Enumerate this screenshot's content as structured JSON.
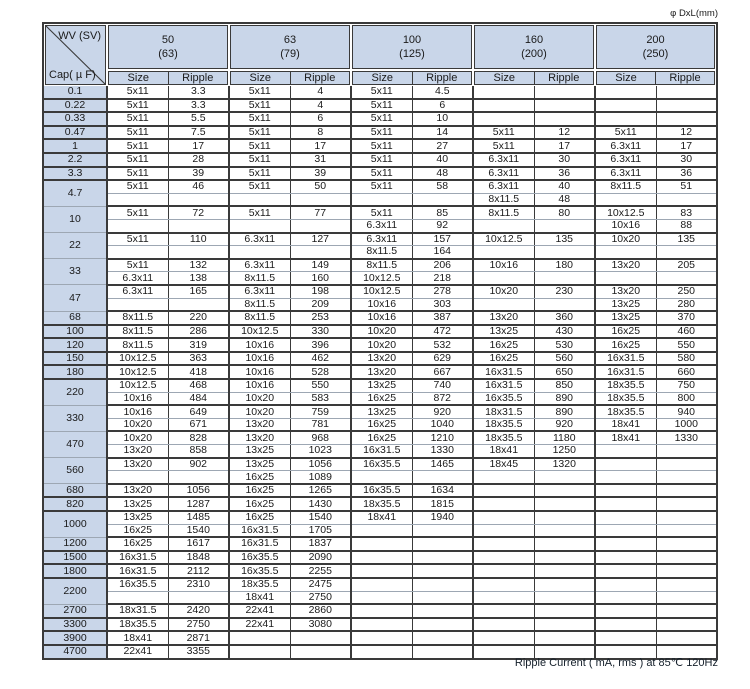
{
  "page": {
    "top_right_label": "φ DxL(mm)",
    "bottom_note": "Ripple Current ( mA, rms ) at 85℃ 120Hz"
  },
  "colors": {
    "header_fill": "#c9d6e9",
    "grid_line": "#3a3a3a"
  },
  "table": {
    "corner": {
      "top": "WV (SV)",
      "bottom": "Cap( µ F)"
    },
    "voltage_columns": [
      {
        "wv": "50",
        "sv": "(63)"
      },
      {
        "wv": "63",
        "sv": "(79)"
      },
      {
        "wv": "100",
        "sv": "(125)"
      },
      {
        "wv": "160",
        "sv": "(200)"
      },
      {
        "wv": "200",
        "sv": "(250)"
      }
    ],
    "subheaders": [
      "Size",
      "Ripple"
    ],
    "rows": [
      {
        "cap": "0.1",
        "sub": [
          [
            [
              "5x11",
              "3.3"
            ],
            [
              "5x11",
              "4"
            ],
            [
              "5x11",
              "4.5"
            ],
            [
              "",
              ""
            ],
            [
              "",
              ""
            ]
          ]
        ]
      },
      {
        "cap": "0.22",
        "sub": [
          [
            [
              "5x11",
              "3.3"
            ],
            [
              "5x11",
              "4"
            ],
            [
              "5x11",
              "6"
            ],
            [
              "",
              ""
            ],
            [
              "",
              ""
            ]
          ]
        ]
      },
      {
        "cap": "0.33",
        "sub": [
          [
            [
              "5x11",
              "5.5"
            ],
            [
              "5x11",
              "6"
            ],
            [
              "5x11",
              "10"
            ],
            [
              "",
              ""
            ],
            [
              "",
              ""
            ]
          ]
        ]
      },
      {
        "cap": "0.47",
        "sub": [
          [
            [
              "5x11",
              "7.5"
            ],
            [
              "5x11",
              "8"
            ],
            [
              "5x11",
              "14"
            ],
            [
              "5x11",
              "12"
            ],
            [
              "5x11",
              "12"
            ]
          ]
        ]
      },
      {
        "cap": "1",
        "sub": [
          [
            [
              "5x11",
              "17"
            ],
            [
              "5x11",
              "17"
            ],
            [
              "5x11",
              "27"
            ],
            [
              "5x11",
              "17"
            ],
            [
              "6.3x11",
              "17"
            ]
          ]
        ]
      },
      {
        "cap": "2.2",
        "sub": [
          [
            [
              "5x11",
              "28"
            ],
            [
              "5x11",
              "31"
            ],
            [
              "5x11",
              "40"
            ],
            [
              "6.3x11",
              "30"
            ],
            [
              "6.3x11",
              "30"
            ]
          ]
        ]
      },
      {
        "cap": "3.3",
        "sub": [
          [
            [
              "5x11",
              "39"
            ],
            [
              "5x11",
              "39"
            ],
            [
              "5x11",
              "48"
            ],
            [
              "6.3x11",
              "36"
            ],
            [
              "6.3x11",
              "36"
            ]
          ]
        ]
      },
      {
        "cap": "4.7",
        "sub": [
          [
            [
              "5x11",
              "46"
            ],
            [
              "5x11",
              "50"
            ],
            [
              "5x11",
              "58"
            ],
            [
              "6.3x11",
              "40"
            ],
            [
              "8x11.5",
              "51"
            ]
          ],
          [
            [
              "",
              ""
            ],
            [
              "",
              ""
            ],
            [
              "",
              ""
            ],
            [
              "8x11.5",
              "48"
            ],
            [
              "",
              ""
            ]
          ]
        ]
      },
      {
        "cap": "10",
        "sub": [
          [
            [
              "5x11",
              "72"
            ],
            [
              "5x11",
              "77"
            ],
            [
              "5x11",
              "85"
            ],
            [
              "8x11.5",
              "80"
            ],
            [
              "10x12.5",
              "83"
            ]
          ],
          [
            [
              "",
              ""
            ],
            [
              "",
              ""
            ],
            [
              "6.3x11",
              "92"
            ],
            [
              "",
              ""
            ],
            [
              "10x16",
              "88"
            ]
          ]
        ]
      },
      {
        "cap": "22",
        "sub": [
          [
            [
              "5x11",
              "110"
            ],
            [
              "6.3x11",
              "127"
            ],
            [
              "6.3x11",
              "157"
            ],
            [
              "10x12.5",
              "135"
            ],
            [
              "10x20",
              "135"
            ]
          ],
          [
            [
              "",
              ""
            ],
            [
              "",
              ""
            ],
            [
              "8x11.5",
              "164"
            ],
            [
              "",
              ""
            ],
            [
              "",
              ""
            ]
          ]
        ]
      },
      {
        "cap": "33",
        "sub": [
          [
            [
              "5x11",
              "132"
            ],
            [
              "6.3x11",
              "149"
            ],
            [
              "8x11.5",
              "206"
            ],
            [
              "10x16",
              "180"
            ],
            [
              "13x20",
              "205"
            ]
          ],
          [
            [
              "6.3x11",
              "138"
            ],
            [
              "8x11.5",
              "160"
            ],
            [
              "10x12.5",
              "218"
            ],
            [
              "",
              ""
            ],
            [
              "",
              ""
            ]
          ]
        ]
      },
      {
        "cap": "47",
        "sub": [
          [
            [
              "6.3x11",
              "165"
            ],
            [
              "6.3x11",
              "198"
            ],
            [
              "10x12.5",
              "278"
            ],
            [
              "10x20",
              "230"
            ],
            [
              "13x20",
              "250"
            ]
          ],
          [
            [
              "",
              ""
            ],
            [
              "8x11.5",
              "209"
            ],
            [
              "10x16",
              "303"
            ],
            [
              "",
              ""
            ],
            [
              "13x25",
              "280"
            ]
          ]
        ]
      },
      {
        "cap": "68",
        "sub": [
          [
            [
              "8x11.5",
              "220"
            ],
            [
              "8x11.5",
              "253"
            ],
            [
              "10x16",
              "387"
            ],
            [
              "13x20",
              "360"
            ],
            [
              "13x25",
              "370"
            ]
          ]
        ]
      },
      {
        "cap": "100",
        "sub": [
          [
            [
              "8x11.5",
              "286"
            ],
            [
              "10x12.5",
              "330"
            ],
            [
              "10x20",
              "472"
            ],
            [
              "13x25",
              "430"
            ],
            [
              "16x25",
              "460"
            ]
          ]
        ]
      },
      {
        "cap": "120",
        "sub": [
          [
            [
              "8x11.5",
              "319"
            ],
            [
              "10x16",
              "396"
            ],
            [
              "10x20",
              "532"
            ],
            [
              "16x25",
              "530"
            ],
            [
              "16x25",
              "550"
            ]
          ]
        ]
      },
      {
        "cap": "150",
        "sub": [
          [
            [
              "10x12.5",
              "363"
            ],
            [
              "10x16",
              "462"
            ],
            [
              "13x20",
              "629"
            ],
            [
              "16x25",
              "560"
            ],
            [
              "16x31.5",
              "580"
            ]
          ]
        ]
      },
      {
        "cap": "180",
        "sub": [
          [
            [
              "10x12.5",
              "418"
            ],
            [
              "10x16",
              "528"
            ],
            [
              "13x20",
              "667"
            ],
            [
              "16x31.5",
              "650"
            ],
            [
              "16x31.5",
              "660"
            ]
          ]
        ]
      },
      {
        "cap": "220",
        "sub": [
          [
            [
              "10x12.5",
              "468"
            ],
            [
              "10x16",
              "550"
            ],
            [
              "13x25",
              "740"
            ],
            [
              "16x31.5",
              "850"
            ],
            [
              "18x35.5",
              "750"
            ]
          ],
          [
            [
              "10x16",
              "484"
            ],
            [
              "10x20",
              "583"
            ],
            [
              "16x25",
              "872"
            ],
            [
              "16x35.5",
              "890"
            ],
            [
              "18x35.5",
              "800"
            ]
          ]
        ]
      },
      {
        "cap": "330",
        "sub": [
          [
            [
              "10x16",
              "649"
            ],
            [
              "10x20",
              "759"
            ],
            [
              "13x25",
              "920"
            ],
            [
              "18x31.5",
              "890"
            ],
            [
              "18x35.5",
              "940"
            ]
          ],
          [
            [
              "10x20",
              "671"
            ],
            [
              "13x20",
              "781"
            ],
            [
              "16x25",
              "1040"
            ],
            [
              "18x35.5",
              "920"
            ],
            [
              "18x41",
              "1000"
            ]
          ]
        ]
      },
      {
        "cap": "470",
        "sub": [
          [
            [
              "10x20",
              "828"
            ],
            [
              "13x20",
              "968"
            ],
            [
              "16x25",
              "1210"
            ],
            [
              "18x35.5",
              "1180"
            ],
            [
              "18x41",
              "1330"
            ]
          ],
          [
            [
              "13x20",
              "858"
            ],
            [
              "13x25",
              "1023"
            ],
            [
              "16x31.5",
              "1330"
            ],
            [
              "18x41",
              "1250"
            ],
            [
              "",
              ""
            ]
          ]
        ]
      },
      {
        "cap": "560",
        "sub": [
          [
            [
              "13x20",
              "902"
            ],
            [
              "13x25",
              "1056"
            ],
            [
              "16x35.5",
              "1465"
            ],
            [
              "18x45",
              "1320"
            ],
            [
              "",
              ""
            ]
          ],
          [
            [
              "",
              ""
            ],
            [
              "16x25",
              "1089"
            ],
            [
              "",
              ""
            ],
            [
              "",
              ""
            ],
            [
              "",
              ""
            ]
          ]
        ]
      },
      {
        "cap": "680",
        "sub": [
          [
            [
              "13x20",
              "1056"
            ],
            [
              "16x25",
              "1265"
            ],
            [
              "16x35.5",
              "1634"
            ],
            [
              "",
              ""
            ],
            [
              "",
              ""
            ]
          ]
        ]
      },
      {
        "cap": "820",
        "sub": [
          [
            [
              "13x25",
              "1287"
            ],
            [
              "16x25",
              "1430"
            ],
            [
              "18x35.5",
              "1815"
            ],
            [
              "",
              ""
            ],
            [
              "",
              ""
            ]
          ]
        ]
      },
      {
        "cap": "1000",
        "sub": [
          [
            [
              "13x25",
              "1485"
            ],
            [
              "16x25",
              "1540"
            ],
            [
              "18x41",
              "1940"
            ],
            [
              "",
              ""
            ],
            [
              "",
              ""
            ]
          ],
          [
            [
              "16x25",
              "1540"
            ],
            [
              "16x31.5",
              "1705"
            ],
            [
              "",
              ""
            ],
            [
              "",
              ""
            ],
            [
              "",
              ""
            ]
          ]
        ]
      },
      {
        "cap": "1200",
        "sub": [
          [
            [
              "16x25",
              "1617"
            ],
            [
              "16x31.5",
              "1837"
            ],
            [
              "",
              ""
            ],
            [
              "",
              ""
            ],
            [
              "",
              ""
            ]
          ]
        ]
      },
      {
        "cap": "1500",
        "sub": [
          [
            [
              "16x31.5",
              "1848"
            ],
            [
              "16x35.5",
              "2090"
            ],
            [
              "",
              ""
            ],
            [
              "",
              ""
            ],
            [
              "",
              ""
            ]
          ]
        ]
      },
      {
        "cap": "1800",
        "sub": [
          [
            [
              "16x31.5",
              "2112"
            ],
            [
              "16x35.5",
              "2255"
            ],
            [
              "",
              ""
            ],
            [
              "",
              ""
            ],
            [
              "",
              ""
            ]
          ]
        ]
      },
      {
        "cap": "2200",
        "sub": [
          [
            [
              "16x35.5",
              "2310"
            ],
            [
              "18x35.5",
              "2475"
            ],
            [
              "",
              ""
            ],
            [
              "",
              ""
            ],
            [
              "",
              ""
            ]
          ],
          [
            [
              "",
              ""
            ],
            [
              "18x41",
              "2750"
            ],
            [
              "",
              ""
            ],
            [
              "",
              ""
            ],
            [
              "",
              ""
            ]
          ]
        ]
      },
      {
        "cap": "2700",
        "sub": [
          [
            [
              "18x31.5",
              "2420"
            ],
            [
              "22x41",
              "2860"
            ],
            [
              "",
              ""
            ],
            [
              "",
              ""
            ],
            [
              "",
              ""
            ]
          ]
        ]
      },
      {
        "cap": "3300",
        "sub": [
          [
            [
              "18x35.5",
              "2750"
            ],
            [
              "22x41",
              "3080"
            ],
            [
              "",
              ""
            ],
            [
              "",
              ""
            ],
            [
              "",
              ""
            ]
          ]
        ]
      },
      {
        "cap": "3900",
        "sub": [
          [
            [
              "18x41",
              "2871"
            ],
            [
              "",
              ""
            ],
            [
              "",
              ""
            ],
            [
              "",
              ""
            ],
            [
              "",
              ""
            ]
          ]
        ]
      },
      {
        "cap": "4700",
        "sub": [
          [
            [
              "22x41",
              "3355"
            ],
            [
              "",
              ""
            ],
            [
              "",
              ""
            ],
            [
              "",
              ""
            ],
            [
              "",
              ""
            ]
          ]
        ]
      }
    ]
  }
}
